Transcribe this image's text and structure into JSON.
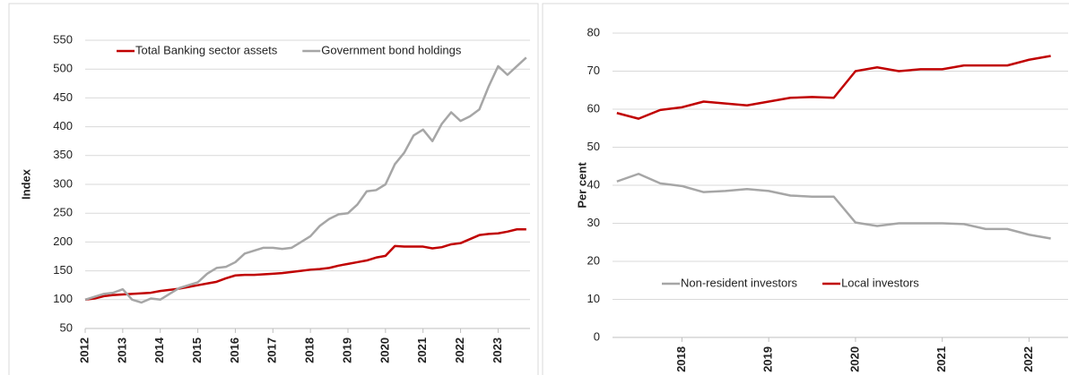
{
  "chart_data": [
    {
      "type": "line",
      "y_label": "Index",
      "x": [
        2012,
        2012.25,
        2012.5,
        2012.75,
        2013,
        2013.25,
        2013.5,
        2013.75,
        2014,
        2014.25,
        2014.5,
        2014.75,
        2015,
        2015.25,
        2015.5,
        2015.75,
        2016,
        2016.25,
        2016.5,
        2016.75,
        2017,
        2017.25,
        2017.5,
        2017.75,
        2018,
        2018.25,
        2018.5,
        2018.75,
        2019,
        2019.25,
        2019.5,
        2019.75,
        2020,
        2020.25,
        2020.5,
        2020.75,
        2021,
        2021.25,
        2021.5,
        2021.75,
        2022,
        2022.25,
        2022.5,
        2022.75,
        2023,
        2023.25,
        2023.5,
        2023.75
      ],
      "series": [
        {
          "name": "Total Banking sector assets",
          "color": "#c00000",
          "values": [
            100,
            102,
            106,
            108,
            109,
            110,
            111,
            112,
            115,
            117,
            119,
            122,
            125,
            128,
            131,
            137,
            142,
            143,
            143,
            144,
            145,
            146,
            148,
            150,
            152,
            153,
            155,
            159,
            162,
            165,
            168,
            173,
            176,
            193,
            192,
            192,
            192,
            189,
            191,
            196,
            198,
            205,
            212,
            214,
            215,
            218,
            222,
            222
          ]
        },
        {
          "name": "Government bond holdings",
          "color": "#a6a6a6",
          "values": [
            100,
            105,
            110,
            112,
            118,
            100,
            95,
            102,
            100,
            110,
            120,
            125,
            130,
            145,
            155,
            157,
            165,
            180,
            185,
            190,
            190,
            188,
            190,
            200,
            210,
            228,
            240,
            248,
            250,
            265,
            288,
            290,
            300,
            335,
            355,
            385,
            395,
            375,
            405,
            425,
            410,
            418,
            430,
            470,
            505,
            490,
            505,
            520
          ]
        }
      ],
      "xlim": [
        2012,
        2023.85
      ],
      "xticks": [
        2012,
        2013,
        2014,
        2015,
        2016,
        2017,
        2018,
        2019,
        2020,
        2021,
        2022,
        2023
      ],
      "ylim": [
        50,
        550
      ],
      "yticks": [
        50,
        100,
        150,
        200,
        250,
        300,
        350,
        400,
        450,
        500,
        550
      ],
      "legend": "upper center"
    },
    {
      "type": "line",
      "y_label": "Per cent",
      "x": [
        2017.25,
        2017.5,
        2017.75,
        2018,
        2018.25,
        2018.5,
        2018.75,
        2019,
        2019.25,
        2019.5,
        2019.75,
        2020,
        2020.25,
        2020.5,
        2020.75,
        2021,
        2021.25,
        2021.5,
        2021.75,
        2022,
        2022.25
      ],
      "series": [
        {
          "name": "Non-resident investors",
          "color": "#a6a6a6",
          "values": [
            41,
            43,
            40.5,
            39.8,
            38.2,
            38.5,
            39,
            38.5,
            37.3,
            37,
            37,
            30.2,
            29.3,
            30,
            30,
            30,
            29.8,
            28.5,
            28.5,
            27,
            26
          ]
        },
        {
          "name": "Local investors",
          "color": "#c00000",
          "values": [
            59,
            57.5,
            59.8,
            60.5,
            62,
            61.5,
            61,
            62,
            63,
            63.2,
            63,
            70,
            71,
            70,
            70.5,
            70.5,
            71.5,
            71.5,
            71.5,
            73,
            74
          ]
        }
      ],
      "xlim": [
        2017.2,
        2022.45
      ],
      "xticks": [
        2018,
        2019,
        2020,
        2021,
        2022
      ],
      "ylim": [
        0,
        80
      ],
      "yticks": [
        0,
        10,
        20,
        30,
        40,
        50,
        60,
        70,
        80
      ],
      "legend": "lower left"
    }
  ]
}
